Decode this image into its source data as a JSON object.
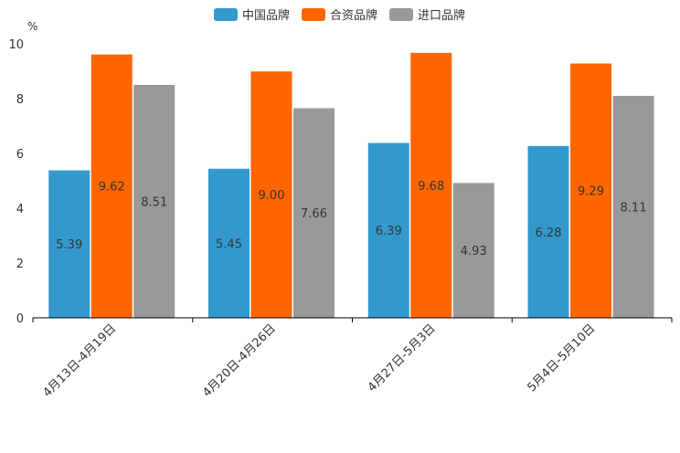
{
  "chart_data": {
    "type": "bar",
    "title": "",
    "unit": "%",
    "xlabel": "",
    "ylabel": "%",
    "categories": [
      "4月13日-4月19日",
      "4月20日-4月26日",
      "4月27日-5月3日",
      "5月4日-5月10日"
    ],
    "series": [
      {
        "name": "中国品牌",
        "color": "#3399cc",
        "values": [
          5.39,
          5.45,
          6.39,
          6.28
        ]
      },
      {
        "name": "合资品牌",
        "color": "#ff6600",
        "values": [
          9.62,
          9.0,
          9.68,
          9.29
        ]
      },
      {
        "name": "进口品牌",
        "color": "#999999",
        "values": [
          8.51,
          7.66,
          4.93,
          8.11
        ]
      }
    ],
    "ylim": [
      0,
      10
    ],
    "yticks": [
      0,
      2,
      4,
      6,
      8,
      10
    ],
    "grid": false,
    "legend_position": "top-center",
    "data_labels": true
  }
}
